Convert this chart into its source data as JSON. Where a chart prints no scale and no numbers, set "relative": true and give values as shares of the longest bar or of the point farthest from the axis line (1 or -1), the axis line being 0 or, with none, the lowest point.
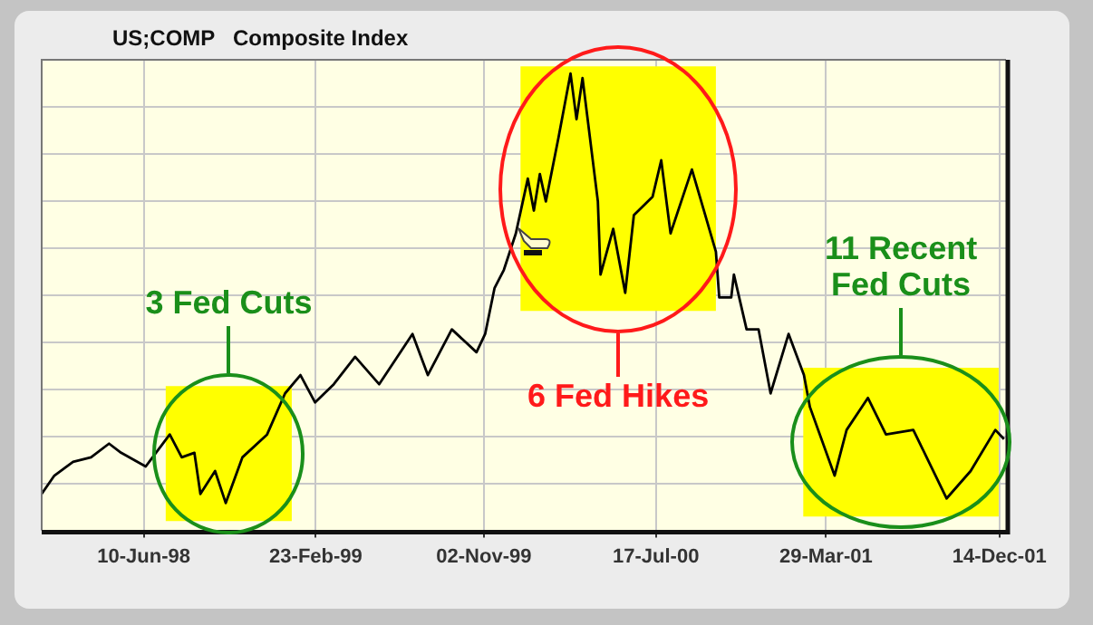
{
  "chart_data": {
    "type": "line",
    "title": "US;COMP   Composite Index",
    "relative": true,
    "grid": true,
    "marker": "none",
    "xlim": [
      "1998-01-08",
      "2001-12-24"
    ],
    "xticks": [
      {
        "value": "1998-06-10",
        "label": "10-Jun-98"
      },
      {
        "value": "1999-02-23",
        "label": "23-Feb-99"
      },
      {
        "value": "1999-11-02",
        "label": "02-Nov-99"
      },
      {
        "value": "2000-07-17",
        "label": "17-Jul-00"
      },
      {
        "value": "2001-03-29",
        "label": "29-Mar-01"
      },
      {
        "value": "2001-12-14",
        "label": "14-Dec-01"
      }
    ],
    "x": [
      "1998-01-08",
      "1998-01-27",
      "1998-02-24",
      "1998-03-23",
      "1998-04-19",
      "1998-05-07",
      "1998-06-13",
      "1998-07-19",
      "1998-08-06",
      "1998-08-25",
      "1998-09-03",
      "1998-09-25",
      "1998-10-11",
      "1998-11-05",
      "1998-12-12",
      "1999-01-08",
      "1999-01-31",
      "1999-02-22",
      "1999-03-22",
      "1999-04-23",
      "1999-05-29",
      "1999-07-18",
      "1999-08-10",
      "1999-09-15",
      "1999-10-22",
      "1999-11-04",
      "1999-11-18",
      "1999-12-02",
      "1999-12-20",
      "2000-01-07",
      "2000-01-16",
      "2000-01-25",
      "2000-02-03",
      "2000-02-22",
      "2000-03-11",
      "2000-03-20",
      "2000-03-29",
      "2000-04-21",
      "2000-04-25",
      "2000-05-14",
      "2000-06-01",
      "2000-06-14",
      "2000-07-12",
      "2000-07-25",
      "2000-08-08",
      "2000-09-09",
      "2000-09-27",
      "2000-10-15",
      "2000-10-20",
      "2000-11-07",
      "2000-11-11",
      "2000-11-30",
      "2000-12-18",
      "2001-01-05",
      "2001-02-01",
      "2001-02-24",
      "2001-03-05",
      "2001-04-11",
      "2001-04-29",
      "2001-05-31",
      "2001-06-27",
      "2001-08-07",
      "2001-09-26",
      "2001-11-01",
      "2001-12-08",
      "2001-12-21"
    ],
    "series": [
      {
        "color": "#000000",
        "values": [
          0.08,
          0.12,
          0.15,
          0.16,
          0.19,
          0.17,
          0.14,
          0.21,
          0.16,
          0.17,
          0.08,
          0.13,
          0.06,
          0.16,
          0.21,
          0.3,
          0.34,
          0.28,
          0.32,
          0.38,
          0.32,
          0.43,
          0.34,
          0.44,
          0.39,
          0.43,
          0.53,
          0.57,
          0.65,
          0.77,
          0.7,
          0.78,
          0.72,
          0.86,
          1.0,
          0.9,
          0.99,
          0.72,
          0.56,
          0.66,
          0.52,
          0.69,
          0.73,
          0.81,
          0.65,
          0.79,
          0.7,
          0.61,
          0.51,
          0.51,
          0.56,
          0.44,
          0.44,
          0.3,
          0.43,
          0.34,
          0.27,
          0.12,
          0.22,
          0.29,
          0.21,
          0.22,
          0.07,
          0.13,
          0.22,
          0.2
        ]
      }
    ],
    "bands": [
      {
        "axis": "x",
        "from": "1998-07-13",
        "to": "1999-01-18",
        "color": "#ffff00"
      },
      {
        "axis": "x",
        "from": "1999-12-27",
        "to": "2000-10-15",
        "color": "#ffff00"
      },
      {
        "axis": "x",
        "from": "2001-02-23",
        "to": "2001-12-13",
        "color": "#ffff00"
      }
    ],
    "annotations": [
      "3 Fed Cuts",
      "6 Fed Hikes",
      "11 Recent Fed Cuts"
    ]
  }
}
